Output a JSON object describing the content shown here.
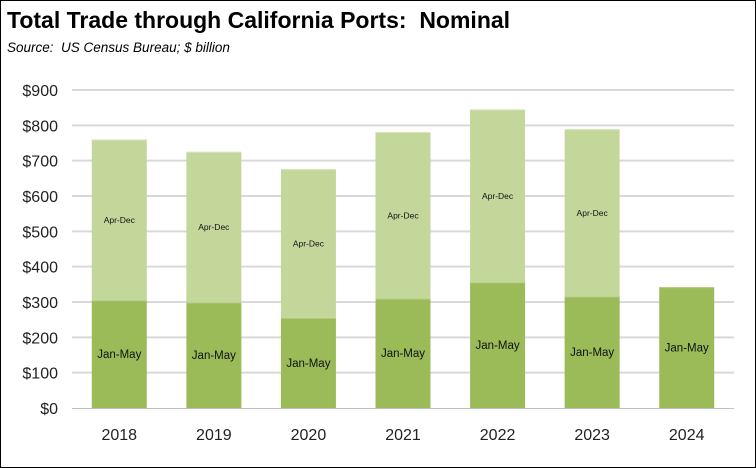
{
  "chart_data": {
    "type": "bar",
    "stacked": true,
    "title": "Total Trade through California Ports:  Nominal",
    "subtitle": "Source:  US Census Bureau; $ billion",
    "xlabel": "",
    "ylabel": "",
    "categories": [
      "2018",
      "2019",
      "2020",
      "2021",
      "2022",
      "2023",
      "2024"
    ],
    "series": [
      {
        "name": "Jan-May",
        "color": "#9bbb59",
        "values": [
          305,
          299,
          255,
          310,
          356,
          316,
          342
        ],
        "labels": [
          "Jan-May",
          "Jan-May",
          "Jan-May",
          "Jan-May",
          "Jan-May",
          "Jan-May",
          "Jan-May"
        ]
      },
      {
        "name": "Apr-Dec",
        "color": "#c4d79b",
        "values": [
          455,
          426,
          421,
          471,
          489,
          473,
          null
        ],
        "labels": [
          "Apr-Dec",
          "Apr-Dec",
          "Apr-Dec",
          "Apr-Dec",
          "Apr-Dec",
          "Apr-Dec",
          null
        ]
      }
    ],
    "ylim": [
      0,
      900
    ],
    "yticks": [
      0,
      100,
      200,
      300,
      400,
      500,
      600,
      700,
      800,
      900
    ],
    "ytick_labels": [
      "$0",
      "$100",
      "$200",
      "$300",
      "$400",
      "$500",
      "$600",
      "$700",
      "$800",
      "$900"
    ],
    "grid": true,
    "legend": "none"
  }
}
